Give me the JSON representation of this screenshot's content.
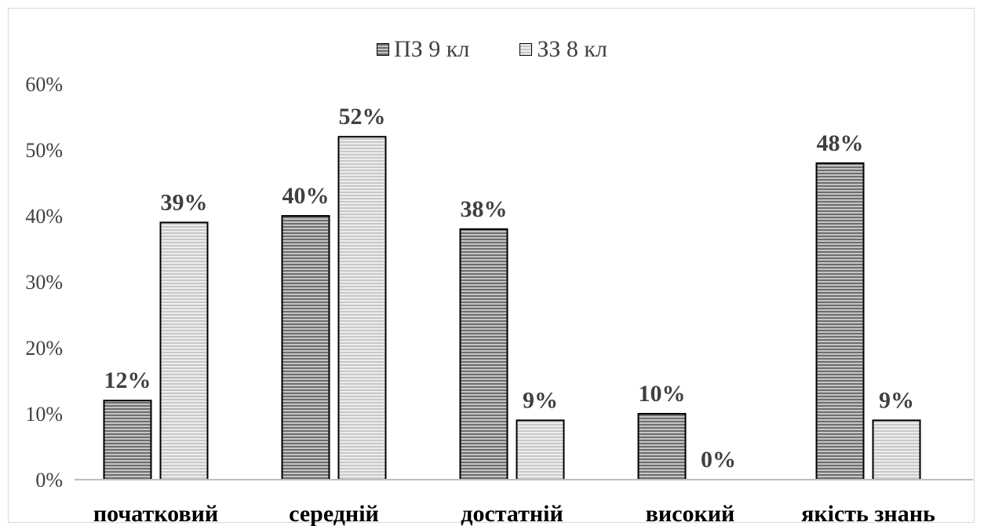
{
  "chart_data": {
    "type": "bar",
    "categories": [
      "початковий",
      "середній",
      "достатній",
      "високий",
      "якість знань"
    ],
    "series": [
      {
        "name": "ПЗ 9 кл",
        "values": [
          12,
          40,
          38,
          10,
          48
        ],
        "labels": [
          "12%",
          "40%",
          "38%",
          "10%",
          "48%"
        ]
      },
      {
        "name": "ЗЗ 8 кл",
        "values": [
          39,
          52,
          9,
          0,
          9
        ],
        "labels": [
          "39%",
          "52%",
          "9%",
          "0%",
          "9%"
        ]
      }
    ],
    "y_ticks": [
      "0%",
      "10%",
      "20%",
      "30%",
      "40%",
      "50%",
      "60%"
    ],
    "ylim": [
      0,
      60
    ],
    "legend_position": "top",
    "grid": false
  }
}
